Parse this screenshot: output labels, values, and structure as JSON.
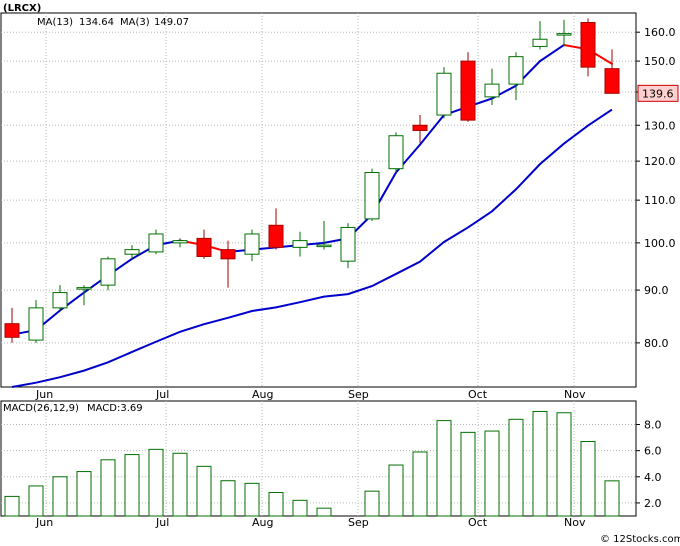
{
  "ticker": "(LRCX)",
  "legend": {
    "ma13_label": "MA(13)",
    "ma13_value": "134.64",
    "ma3_label": "MA(3)",
    "ma3_value": "149.07",
    "macd_params": "MACD(26,12,9)",
    "macd_label": "MACD:3.69"
  },
  "price_tag": "139.6",
  "watermark": "© 12Stocks.com",
  "colors": {
    "up_candle": "#007000",
    "down_candle": "#ff0000",
    "ma_long": "#0000cc",
    "ma_short_down": "#ff0000",
    "macd_bar": "#007000",
    "grid": "#b8b8b8",
    "tag_bg": "#ffd0d0"
  },
  "chart_data": [
    {
      "type": "candlestick",
      "title": "(LRCX)",
      "x_labels": [
        "Jun",
        "Jul",
        "Aug",
        "Sep",
        "Oct",
        "Nov"
      ],
      "x_label_index": [
        1,
        6,
        10,
        14,
        19,
        23
      ],
      "y_ticks": [
        80.0,
        90.0,
        100.0,
        110.0,
        120.0,
        130.0,
        140.0,
        150.0,
        160.0
      ],
      "y_scale": "log",
      "ylim": [
        72.5,
        167.0
      ],
      "grid": true,
      "candles": [
        {
          "open": 83.5,
          "high": 86.5,
          "low": 80.0,
          "close": 81.0
        },
        {
          "open": 80.5,
          "high": 88.0,
          "low": 80.0,
          "close": 86.5
        },
        {
          "open": 86.5,
          "high": 91.0,
          "low": 86.0,
          "close": 89.5
        },
        {
          "open": 90.5,
          "high": 91.0,
          "low": 87.0,
          "close": 90.5
        },
        {
          "open": 91.0,
          "high": 97.0,
          "low": 90.0,
          "close": 96.5
        },
        {
          "open": 97.5,
          "high": 99.5,
          "low": 96.5,
          "close": 98.5
        },
        {
          "open": 98.0,
          "high": 103.0,
          "low": 97.5,
          "close": 102.0
        },
        {
          "open": 100.0,
          "high": 101.0,
          "low": 99.0,
          "close": 100.5
        },
        {
          "open": 101.0,
          "high": 103.0,
          "low": 96.5,
          "close": 97.0
        },
        {
          "open": 98.5,
          "high": 100.5,
          "low": 90.5,
          "close": 96.5
        },
        {
          "open": 97.5,
          "high": 103.0,
          "low": 96.0,
          "close": 102.0
        },
        {
          "open": 104.0,
          "high": 108.0,
          "low": 98.5,
          "close": 99.0
        },
        {
          "open": 99.0,
          "high": 102.5,
          "low": 97.0,
          "close": 100.5
        },
        {
          "open": 99.5,
          "high": 105.0,
          "low": 98.5,
          "close": 99.5
        },
        {
          "open": 96.0,
          "high": 104.5,
          "low": 94.5,
          "close": 103.5
        },
        {
          "open": 105.5,
          "high": 118.0,
          "low": 105.0,
          "close": 117.0
        },
        {
          "open": 118.0,
          "high": 128.0,
          "low": 117.0,
          "close": 127.0
        },
        {
          "open": 130.0,
          "high": 133.0,
          "low": 125.0,
          "close": 128.5
        },
        {
          "open": 133.0,
          "high": 148.0,
          "low": 132.0,
          "close": 146.0
        },
        {
          "open": 150.0,
          "high": 153.0,
          "low": 131.0,
          "close": 131.5
        },
        {
          "open": 138.5,
          "high": 147.5,
          "low": 136.0,
          "close": 142.5
        },
        {
          "open": 142.5,
          "high": 153.0,
          "low": 137.5,
          "close": 151.5
        },
        {
          "open": 155.0,
          "high": 164.0,
          "low": 154.0,
          "close": 157.5
        },
        {
          "open": 159.5,
          "high": 164.5,
          "low": 155.0,
          "close": 159.5
        },
        {
          "open": 163.5,
          "high": 165.0,
          "low": 145.0,
          "close": 148.0
        },
        {
          "open": 147.5,
          "high": 154.0,
          "low": 139.5,
          "close": 139.6
        }
      ],
      "ma13": [
        72.5,
        73.2,
        74.1,
        75.2,
        76.6,
        78.4,
        80.2,
        82.0,
        83.4,
        84.6,
        85.9,
        86.6,
        87.6,
        88.7,
        89.2,
        90.8,
        93.3,
        95.9,
        100.2,
        103.5,
        107.3,
        112.7,
        119.2,
        124.8,
        129.9,
        134.64
      ],
      "ma3": [
        81.5,
        82.3,
        86.0,
        89.5,
        93.0,
        96.5,
        99.5,
        100.5,
        99.5,
        98.0,
        98.5,
        99.0,
        99.5,
        100.0,
        101.0,
        106.5,
        117.0,
        124.5,
        133.0,
        135.5,
        138.0,
        142.0,
        150.0,
        155.5,
        154.0,
        149.07
      ]
    },
    {
      "type": "bar",
      "title": "MACD(26,12,9)",
      "y_ticks": [
        2.0,
        4.0,
        6.0,
        8.0
      ],
      "ylim": [
        1.0,
        9.8
      ],
      "grid": true,
      "values": [
        2.5,
        3.3,
        4.0,
        4.4,
        5.3,
        5.7,
        6.1,
        5.8,
        4.8,
        3.7,
        3.5,
        2.8,
        2.2,
        1.6,
        0.0,
        2.9,
        4.9,
        5.9,
        8.3,
        7.4,
        7.5,
        8.4,
        9.0,
        8.9,
        6.7,
        3.69
      ]
    }
  ]
}
